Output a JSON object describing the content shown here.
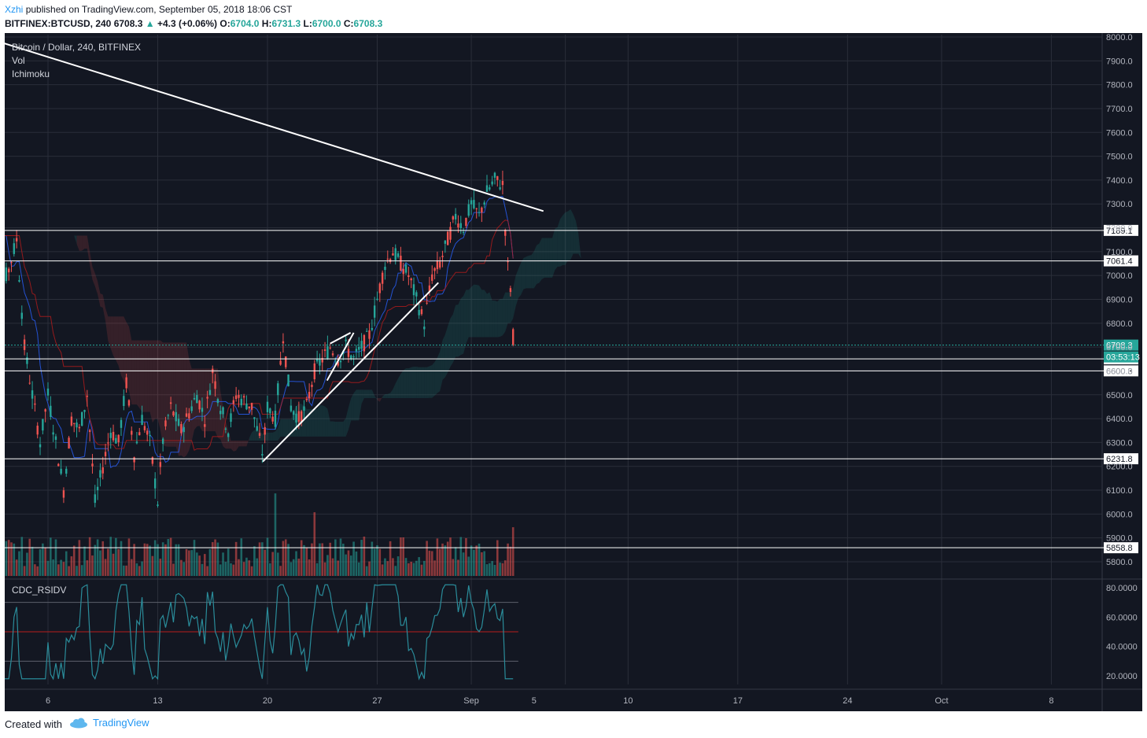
{
  "header": {
    "author": "Xzhi",
    "published": "published on TradingView.com, September 05, 2018 18:06 CST",
    "symbol": "BITFINEX:BTCUSD, 240",
    "last": "6708.3",
    "change_arrow": "▲",
    "change": "+4.3 (+0.06%)",
    "o_label": "O:",
    "o_val": "6704.0",
    "h_label": "H:",
    "h_val": "6731.3",
    "l_label": "L:",
    "l_val": "6700.0",
    "c_label": "C:",
    "c_val": "6708.3"
  },
  "legend": {
    "title": "Bitcoin / Dollar, 240, BITFINEX",
    "vol": "Vol",
    "ichimoku": "Ichimoku",
    "rsi": "CDC_RSIDV"
  },
  "price_axis": [
    "8000.0",
    "7900.0",
    "7800.0",
    "7700.0",
    "7600.0",
    "7500.0",
    "7400.0",
    "7300.0",
    "7200.0",
    "7100.0",
    "7000.0",
    "6900.0",
    "6800.0",
    "6700.0",
    "6600.0",
    "6500.0",
    "6400.0",
    "6300.0",
    "6200.0",
    "6100.0",
    "6000.0",
    "5900.0",
    "5800.0"
  ],
  "rsi_axis": [
    "80.0000",
    "60.0000",
    "40.0000",
    "20.0000"
  ],
  "time_axis": [
    "6",
    "13",
    "20",
    "27",
    "Sep",
    "5",
    "10",
    "17",
    "24",
    "Oct",
    "8"
  ],
  "level_labels": [
    "7189.1",
    "7061.4",
    "6650.6",
    "6600.3",
    "6231.8",
    "5858.8"
  ],
  "current_price": "6708.3",
  "countdown": "03:53:13",
  "footer": {
    "created": "Created with",
    "brand": "TradingView"
  },
  "colors": {
    "bg": "#131722",
    "up": "#26a69a",
    "down": "#ef5350",
    "grid": "#2a2e39",
    "axis_text": "#b2b5be",
    "level": "#ffffff",
    "cur_price": "#26a69a"
  },
  "chart_data": {
    "type": "candlestick",
    "symbol": "BITFINEX:BTCUSD",
    "interval": "240",
    "y_range": [
      5750,
      8000
    ],
    "rsi_range": [
      15,
      85
    ],
    "horizontal_levels": [
      7189.1,
      7061.4,
      6650.6,
      6600.3,
      6231.8,
      5858.8
    ],
    "current_price": 6708.3,
    "anchors": [
      {
        "d": 2.0,
        "p": 7400
      },
      {
        "d": 2.5,
        "p": 7000
      },
      {
        "d": 3.4,
        "p": 7000
      },
      {
        "d": 4.0,
        "p": 7150
      },
      {
        "d": 4.5,
        "p": 6700
      },
      {
        "d": 5.0,
        "p": 6500
      },
      {
        "d": 5.5,
        "p": 6300
      },
      {
        "d": 6.0,
        "p": 6500
      },
      {
        "d": 6.5,
        "p": 6300
      },
      {
        "d": 7.0,
        "p": 6100
      },
      {
        "d": 7.5,
        "p": 6400
      },
      {
        "d": 8.0,
        "p": 6350
      },
      {
        "d": 8.5,
        "p": 6500
      },
      {
        "d": 9.0,
        "p": 6050
      },
      {
        "d": 10.0,
        "p": 6350
      },
      {
        "d": 10.5,
        "p": 6300
      },
      {
        "d": 11.0,
        "p": 6550
      },
      {
        "d": 11.5,
        "p": 6250
      },
      {
        "d": 12.0,
        "p": 6400
      },
      {
        "d": 12.5,
        "p": 6300
      },
      {
        "d": 13.0,
        "p": 6050
      },
      {
        "d": 13.3,
        "p": 6300
      },
      {
        "d": 13.8,
        "p": 6450
      },
      {
        "d": 14.5,
        "p": 6350
      },
      {
        "d": 15.5,
        "p": 6500
      },
      {
        "d": 16.0,
        "p": 6400
      },
      {
        "d": 16.5,
        "p": 6600
      },
      {
        "d": 17.0,
        "p": 6450
      },
      {
        "d": 17.5,
        "p": 6350
      },
      {
        "d": 18.0,
        "p": 6500
      },
      {
        "d": 19.0,
        "p": 6450
      },
      {
        "d": 19.7,
        "p": 6250
      },
      {
        "d": 20.0,
        "p": 6450
      },
      {
        "d": 20.5,
        "p": 6400
      },
      {
        "d": 21.0,
        "p": 6750
      },
      {
        "d": 21.5,
        "p": 6450
      },
      {
        "d": 22.0,
        "p": 6400
      },
      {
        "d": 22.5,
        "p": 6450
      },
      {
        "d": 23.0,
        "p": 6600
      },
      {
        "d": 23.5,
        "p": 6650
      },
      {
        "d": 24.0,
        "p": 6700
      },
      {
        "d": 24.5,
        "p": 6650
      },
      {
        "d": 25.0,
        "p": 6700
      },
      {
        "d": 25.5,
        "p": 6650
      },
      {
        "d": 26.0,
        "p": 6700
      },
      {
        "d": 26.5,
        "p": 6750
      },
      {
        "d": 27.0,
        "p": 6900
      },
      {
        "d": 27.5,
        "p": 7050
      },
      {
        "d": 28.0,
        "p": 7100
      },
      {
        "d": 28.5,
        "p": 7050
      },
      {
        "d": 29.0,
        "p": 7000
      },
      {
        "d": 29.5,
        "p": 6900
      },
      {
        "d": 30.0,
        "p": 6800
      },
      {
        "d": 30.5,
        "p": 7000
      },
      {
        "d": 31.0,
        "p": 7050
      },
      {
        "d": 31.5,
        "p": 7150
      },
      {
        "d": 32.0,
        "p": 7250
      },
      {
        "d": 32.5,
        "p": 7200
      },
      {
        "d": 33.0,
        "p": 7300
      },
      {
        "d": 33.5,
        "p": 7250
      },
      {
        "d": 34.0,
        "p": 7350
      },
      {
        "d": 34.5,
        "p": 7400
      },
      {
        "d": 35.0,
        "p": 7380
      },
      {
        "d": 35.3,
        "p": 7050
      },
      {
        "d": 35.5,
        "p": 6950
      },
      {
        "d": 35.7,
        "p": 6708
      }
    ],
    "drawn_lines": [
      {
        "from": {
          "d": 1.9,
          "p": 8000
        },
        "to": {
          "d": 37.6,
          "p": 7270
        }
      },
      {
        "from": {
          "d": 19.7,
          "p": 6220
        },
        "to": {
          "d": 30.9,
          "p": 6970
        }
      },
      {
        "from": {
          "d": 23.8,
          "p": 6560
        },
        "to": {
          "d": 25.5,
          "p": 6760
        }
      },
      {
        "from": {
          "d": 24.0,
          "p": 6715
        },
        "to": {
          "d": 25.3,
          "p": 6760
        }
      }
    ]
  }
}
